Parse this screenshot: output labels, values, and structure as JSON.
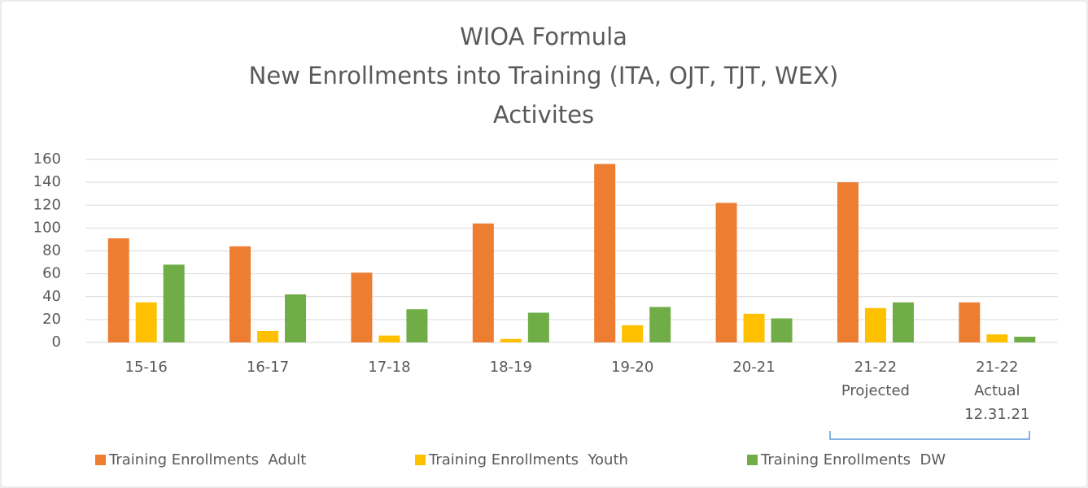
{
  "chart_data": {
    "type": "bar",
    "title": [
      "WIOA Formula",
      "New Enrollments into Training (ITA, OJT, TJT, WEX)",
      "Activites"
    ],
    "categories": [
      [
        "15-16"
      ],
      [
        "16-17"
      ],
      [
        "17-18"
      ],
      [
        "18-19"
      ],
      [
        "19-20"
      ],
      [
        "20-21"
      ],
      [
        "21-22",
        "Projected"
      ],
      [
        "21-22",
        "Actual",
        "12.31.21"
      ]
    ],
    "series": [
      {
        "name": "Training Enrollments  Adult",
        "color": "#ed7d31",
        "values": [
          91,
          84,
          61,
          104,
          156,
          122,
          140,
          35
        ]
      },
      {
        "name": "Training Enrollments  Youth",
        "color": "#ffc000",
        "values": [
          35,
          10,
          6,
          3,
          15,
          25,
          30,
          7
        ]
      },
      {
        "name": "Training Enrollments  DW",
        "color": "#70ad47",
        "values": [
          68,
          42,
          29,
          26,
          31,
          21,
          35,
          5
        ]
      }
    ],
    "ylim": [
      0,
      160
    ],
    "yticks": [
      0,
      20,
      40,
      60,
      80,
      100,
      120,
      140,
      160
    ],
    "grid": true,
    "legend": "bottom"
  }
}
